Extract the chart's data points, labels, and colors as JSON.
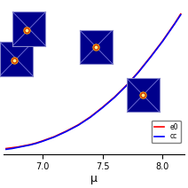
{
  "x_curve": [
    6.7,
    6.75,
    6.8,
    6.85,
    6.9,
    6.95,
    7.0,
    7.1,
    7.2,
    7.3,
    7.4,
    7.5,
    7.6,
    7.7,
    7.8,
    7.9,
    8.0,
    8.1,
    8.15
  ],
  "y_red": [
    0.02,
    0.03,
    0.04,
    0.055,
    0.07,
    0.09,
    0.115,
    0.17,
    0.24,
    0.32,
    0.42,
    0.54,
    0.67,
    0.82,
    0.99,
    1.18,
    1.38,
    1.6,
    1.72
  ],
  "y_blue": [
    0.01,
    0.02,
    0.035,
    0.05,
    0.065,
    0.085,
    0.11,
    0.165,
    0.235,
    0.315,
    0.415,
    0.535,
    0.665,
    0.815,
    0.985,
    1.175,
    1.375,
    1.595,
    1.71
  ],
  "xlim": [
    6.68,
    8.18
  ],
  "ylim": [
    -0.05,
    1.85
  ],
  "xlabel": "μ",
  "xticks": [
    7.0,
    7.5,
    8.0
  ],
  "xtick_labels": [
    "7.0",
    "7.5",
    "8.0"
  ],
  "legend_labels": [
    "e0",
    "cc"
  ],
  "bg_color": "#ffffff",
  "inset_bg": "#00008B",
  "inset_border": "#aaaaff",
  "connector_color": "#888888"
}
